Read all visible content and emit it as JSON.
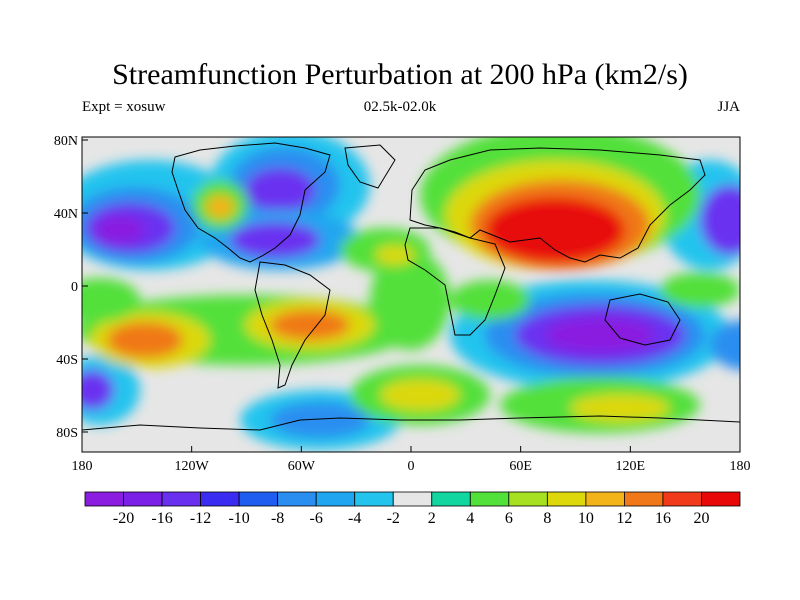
{
  "title": "Streamfunction Perturbation at 200 hPa (km2/s)",
  "left_subtitle": "Expt = xosuw",
  "center_subtitle": "02.5k-02.0k",
  "right_subtitle": "JJA",
  "lon_ticks": [
    "180",
    "120W",
    "60W",
    "0",
    "60E",
    "120E",
    "180"
  ],
  "lat_ticks": [
    "80N",
    "40N",
    "0",
    "40S",
    "80S"
  ],
  "colorbar": {
    "colors": [
      "#8a1de0",
      "#7b20e6",
      "#6a30f0",
      "#3a2cf0",
      "#1f5cf0",
      "#2a8ef0",
      "#20a6f0",
      "#22c4ee",
      "#e6e6e6",
      "#12d6a0",
      "#52e03a",
      "#a6e020",
      "#dcd80c",
      "#f2b418",
      "#f07818",
      "#f03a1a",
      "#e80808"
    ],
    "labels": [
      "-20",
      "-16",
      "-12",
      "-10",
      "-8",
      "-6",
      "-4",
      "-2",
      "2",
      "4",
      "6",
      "8",
      "10",
      "12",
      "16",
      "20"
    ]
  }
}
